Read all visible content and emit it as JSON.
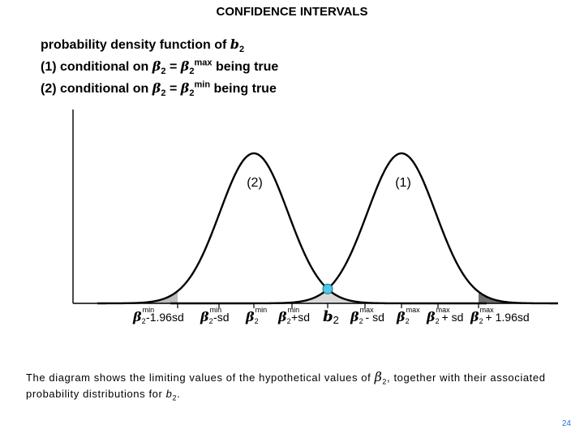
{
  "title": "CONFIDENCE INTERVALS",
  "heading": {
    "line1_text": "probability density function of ",
    "line1_var": "b",
    "line1_sub": "2",
    "line2_prefix": "(1) conditional on ",
    "line2_beta": "β",
    "line2_sub": "2",
    "line2_eq": " = ",
    "line2_beta2": "β",
    "line2_sub2": "2",
    "line2_sup2": "max",
    "line2_suffix": " being true",
    "line3_prefix": "(2) conditional on ",
    "line3_beta": "β",
    "line3_sub": "2",
    "line3_eq": " = ",
    "line3_beta2": "β",
    "line3_sub2": "2",
    "line3_sup2": "min",
    "line3_suffix": " being true"
  },
  "curves": {
    "label_left": "(2)",
    "label_right": "(1)"
  },
  "axis_labels": [
    {
      "beta": "β",
      "sub": "2",
      "sup": "min",
      "text": " -1.96sd"
    },
    {
      "beta": "β",
      "sub": "2",
      "sup": "min",
      "text": " -sd"
    },
    {
      "beta": "β",
      "sub": "2",
      "sup": "min",
      "text": ""
    },
    {
      "beta": "β",
      "sub": "2",
      "sup": "min",
      "text": " +sd"
    },
    {
      "beta": "b",
      "sub": "2",
      "sup": "",
      "text": ""
    },
    {
      "beta": "β",
      "sub": "2",
      "sup": "max",
      "text": " - sd"
    },
    {
      "beta": "β",
      "sub": "2",
      "sup": "max",
      "text": ""
    },
    {
      "beta": "β",
      "sub": "2",
      "sup": "max",
      "text": " + sd"
    },
    {
      "beta": "β",
      "sub": "2",
      "sup": "max",
      "text": " + 1.96sd"
    }
  ],
  "caption": {
    "part1": "The diagram shows the limiting values of the hypothetical values of ",
    "beta": "β",
    "sub": "2",
    "part2": ", together with their associated probability distributions for ",
    "b": "b",
    "bsub": "2",
    "part3": "."
  },
  "page_number": "24",
  "colors": {
    "curve": "#000000",
    "tail_fill": "#bdbdbd",
    "tail_fill_dark": "#6e6e6e",
    "overlap_fill": "#d9d9d9",
    "point": "#4fc8e8"
  }
}
